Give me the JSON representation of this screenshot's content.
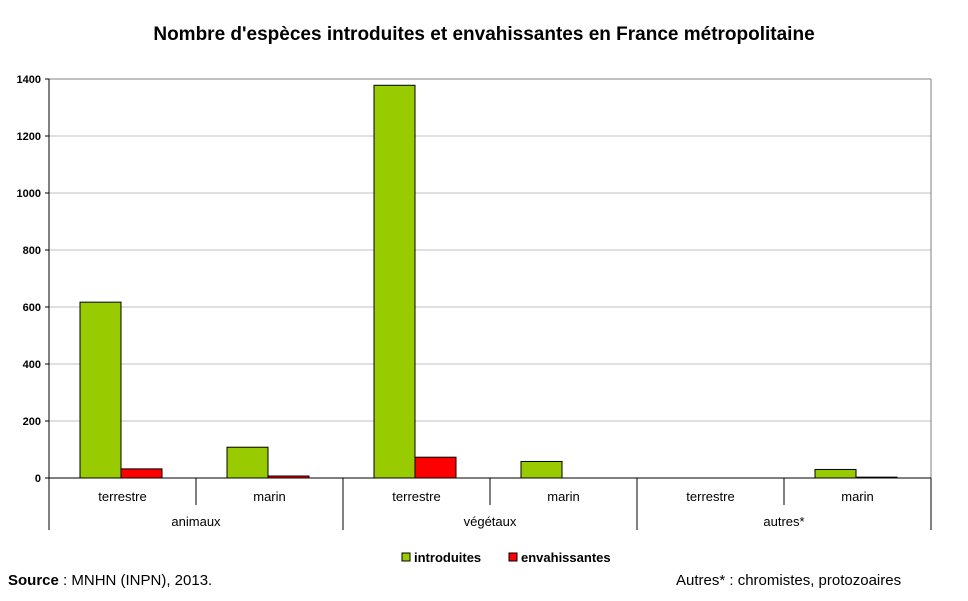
{
  "chart_data": {
    "type": "bar",
    "title": "Nombre d'espèces introduites et envahissantes en France métropolitaine",
    "groups": [
      {
        "label": "animaux",
        "categories": [
          "terrestre",
          "marin"
        ]
      },
      {
        "label": "végétaux",
        "categories": [
          "terrestre",
          "marin"
        ]
      },
      {
        "label": "autres*",
        "categories": [
          "terrestre",
          "marin"
        ]
      }
    ],
    "categories": [
      "terrestre",
      "marin",
      "terrestre",
      "marin",
      "terrestre",
      "marin"
    ],
    "series": [
      {
        "name": "introduites",
        "color": "#99cc00",
        "values": [
          617,
          108,
          1378,
          58,
          0,
          30
        ]
      },
      {
        "name": "envahissantes",
        "color": "#ff0000",
        "values": [
          32,
          7,
          73,
          0,
          0,
          3
        ]
      }
    ],
    "ylim": [
      0,
      1400
    ],
    "yticks": [
      0,
      200,
      400,
      600,
      800,
      1000,
      1200,
      1400
    ],
    "grid": true,
    "legend": "bottom"
  },
  "footer": {
    "source_label": "Source",
    "source_text": " : MNHN (INPN), 2013.",
    "note": "Autres* : chromistes, protozoaires"
  }
}
